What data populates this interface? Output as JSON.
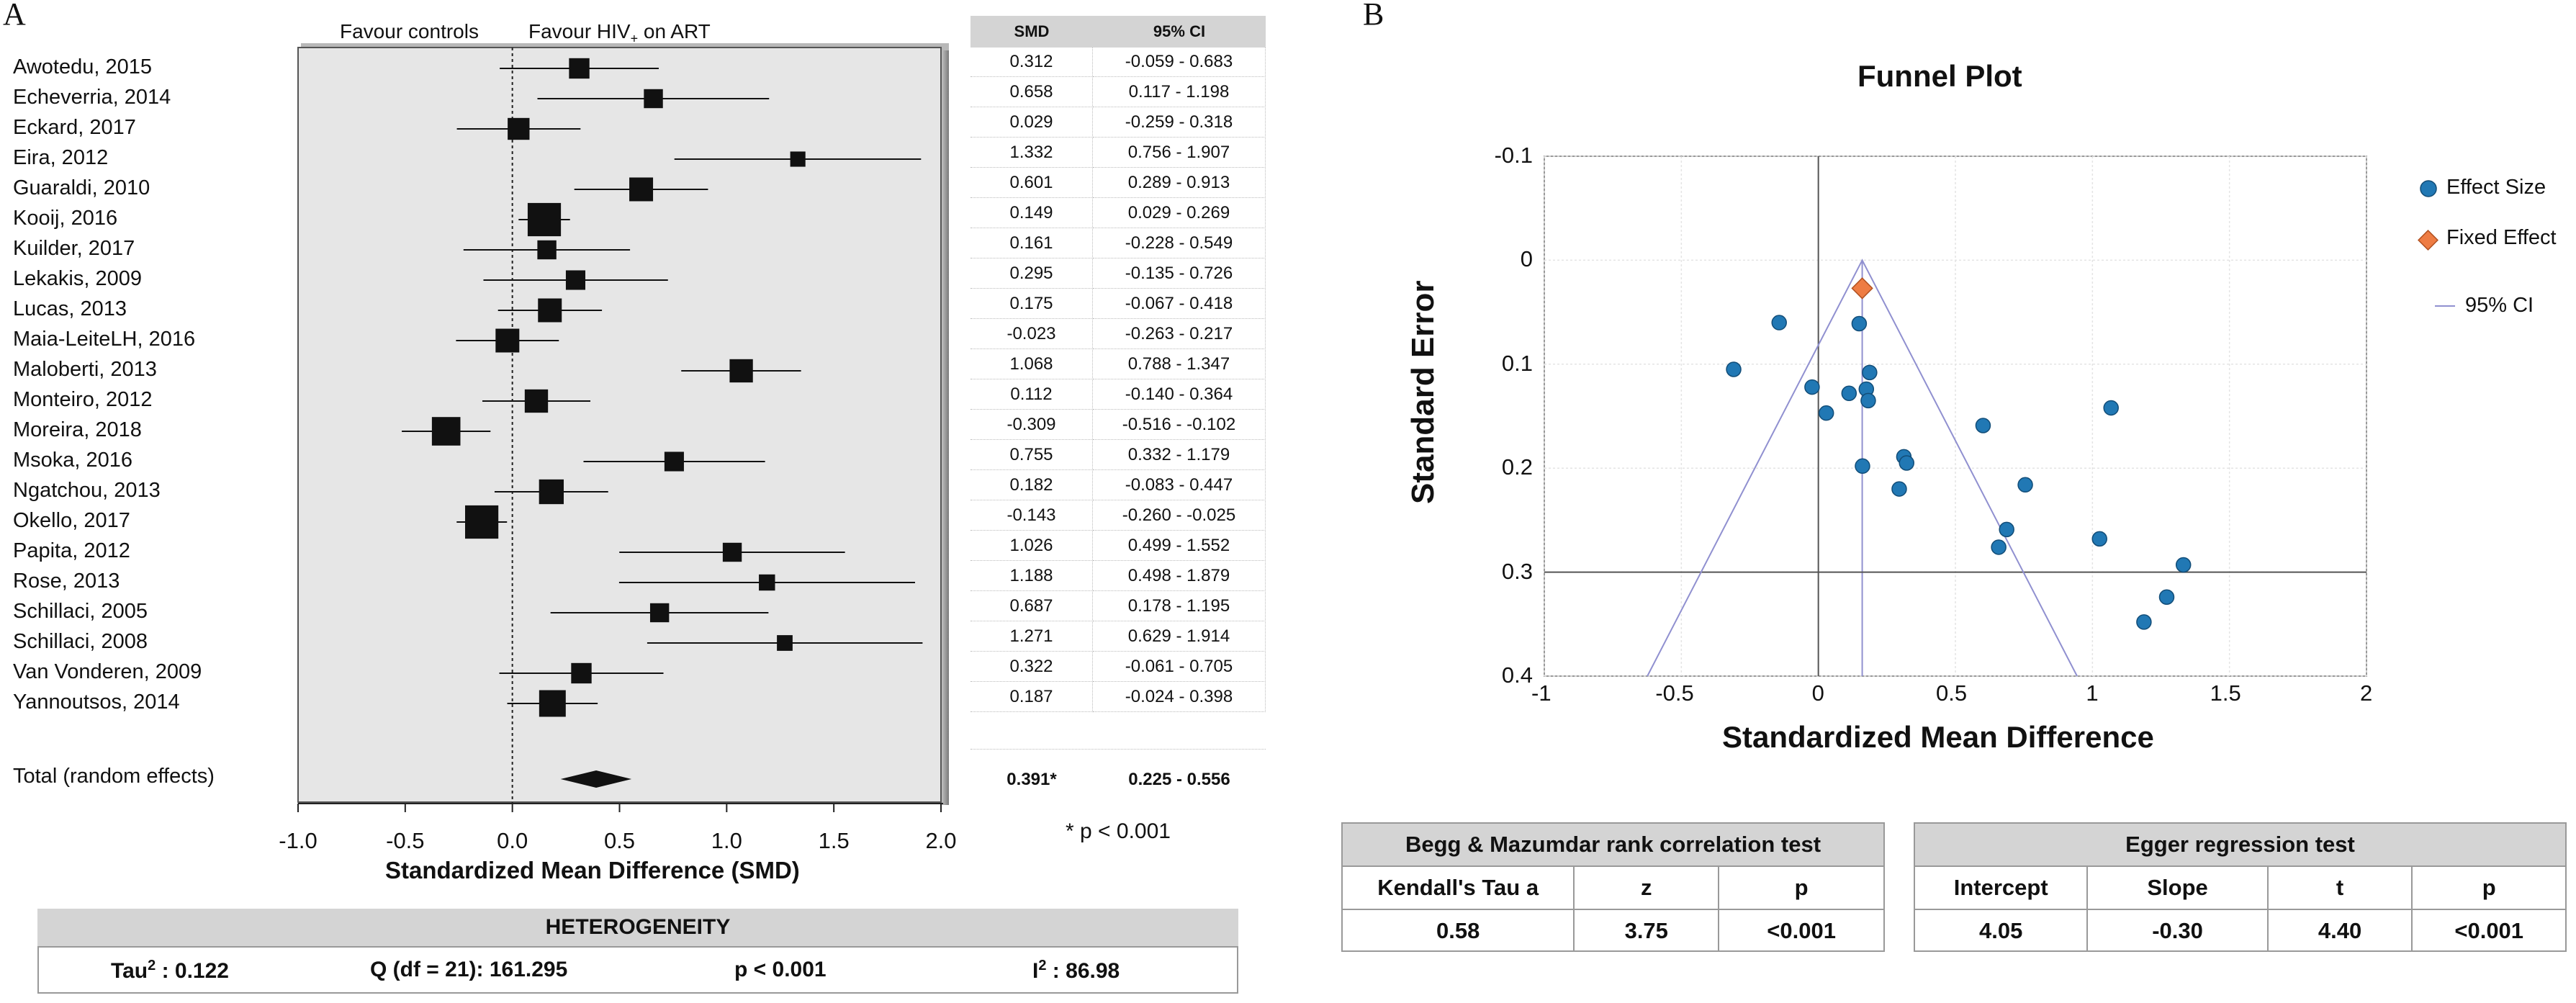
{
  "panel_a_letter": "A",
  "panel_b_letter": "B",
  "forest": {
    "favour_left": "Favour controls",
    "favour_right": "Favour HIV",
    "favour_right_sub": "+",
    "favour_right_tail": " on ART",
    "xlabel": "Standardized Mean Difference (SMD)",
    "x_ticks": [
      "-1.0",
      "-0.5",
      "0.0",
      "0.5",
      "1.0",
      "1.5",
      "2.0"
    ],
    "total_label": "Total (random effects)",
    "smd_header": "SMD",
    "ci_header": "95% CI",
    "total_smd": "0.391*",
    "total_ci": "0.225 - 0.556",
    "footnote": "* p < 0.001"
  },
  "chart_data": [
    {
      "type": "forest",
      "xlabel": "Standardized Mean Difference (SMD)",
      "xlim": [
        -1.0,
        2.0
      ],
      "studies": [
        {
          "name": "Awotedu, 2015",
          "smd": 0.312,
          "lo": -0.059,
          "hi": 0.683,
          "ci_text": "-0.059 - 0.683",
          "smd_text": "0.312",
          "weight": 4.3
        },
        {
          "name": "Echeverria, 2014",
          "smd": 0.658,
          "lo": 0.117,
          "hi": 1.198,
          "ci_text": "0.117 - 1.198",
          "smd_text": "0.658",
          "weight": 4.0
        },
        {
          "name": "Eckard, 2017",
          "smd": 0.029,
          "lo": -0.259,
          "hi": 0.318,
          "ci_text": "-0.259 - 0.318",
          "smd_text": "0.029",
          "weight": 4.6
        },
        {
          "name": "Eira, 2012",
          "smd": 1.332,
          "lo": 0.756,
          "hi": 1.907,
          "ci_text": "0.756 - 1.907",
          "smd_text": "1.332",
          "weight": 3.2
        },
        {
          "name": "Guaraldi, 2010",
          "smd": 0.601,
          "lo": 0.289,
          "hi": 0.913,
          "ci_text": "0.289 - 0.913",
          "smd_text": "0.601",
          "weight": 5.0
        },
        {
          "name": "Kooij, 2016",
          "smd": 0.149,
          "lo": 0.029,
          "hi": 0.269,
          "ci_text": "0.029 - 0.269",
          "smd_text": "0.149",
          "weight": 7.0
        },
        {
          "name": "Kuilder, 2017",
          "smd": 0.161,
          "lo": -0.228,
          "hi": 0.549,
          "ci_text": "-0.228 - 0.549",
          "smd_text": "0.161",
          "weight": 4.0
        },
        {
          "name": "Lekakis, 2009",
          "smd": 0.295,
          "lo": -0.135,
          "hi": 0.726,
          "ci_text": "-0.135 - 0.726",
          "smd_text": "0.295",
          "weight": 4.1
        },
        {
          "name": "Lucas, 2013",
          "smd": 0.175,
          "lo": -0.067,
          "hi": 0.418,
          "ci_text": "-0.067 - 0.418",
          "smd_text": "0.175",
          "weight": 5.0
        },
        {
          "name": "Maia-LeiteLH, 2016",
          "smd": -0.023,
          "lo": -0.263,
          "hi": 0.217,
          "ci_text": "-0.263 - 0.217",
          "smd_text": "-0.023",
          "weight": 5.0
        },
        {
          "name": "Maloberti, 2013",
          "smd": 1.068,
          "lo": 0.788,
          "hi": 1.347,
          "ci_text": "0.788 - 1.347",
          "smd_text": "1.068",
          "weight": 4.9
        },
        {
          "name": "Monteiro, 2012",
          "smd": 0.112,
          "lo": -0.14,
          "hi": 0.364,
          "ci_text": "-0.140 - 0.364",
          "smd_text": "0.112",
          "weight": 4.9
        },
        {
          "name": "Moreira, 2018",
          "smd": -0.309,
          "lo": -0.516,
          "hi": -0.102,
          "ci_text": "-0.516 - -0.102",
          "smd_text": "-0.309",
          "weight": 6.0
        },
        {
          "name": "Msoka, 2016",
          "smd": 0.755,
          "lo": 0.332,
          "hi": 1.179,
          "ci_text": "0.332 - 1.179",
          "smd_text": "0.755",
          "weight": 4.1
        },
        {
          "name": "Ngatchou, 2013",
          "smd": 0.182,
          "lo": -0.083,
          "hi": 0.447,
          "ci_text": "-0.083 - 0.447",
          "smd_text": "0.182",
          "weight": 5.2
        },
        {
          "name": "Okello, 2017",
          "smd": -0.143,
          "lo": -0.26,
          "hi": -0.025,
          "ci_text": "-0.260 - -0.025",
          "smd_text": "-0.143",
          "weight": 7.0
        },
        {
          "name": "Papita, 2012",
          "smd": 1.026,
          "lo": 0.499,
          "hi": 1.552,
          "ci_text": "0.499 - 1.552",
          "smd_text": "1.026",
          "weight": 4.0
        },
        {
          "name": "Rose, 2013",
          "smd": 1.188,
          "lo": 0.498,
          "hi": 1.879,
          "ci_text": "0.498 - 1.879",
          "smd_text": "1.188",
          "weight": 3.4
        },
        {
          "name": "Schillaci, 2005",
          "smd": 0.687,
          "lo": 0.178,
          "hi": 1.195,
          "ci_text": "0.178 - 1.195",
          "smd_text": "0.687",
          "weight": 4.0
        },
        {
          "name": "Schillaci, 2008",
          "smd": 1.271,
          "lo": 0.629,
          "hi": 1.914,
          "ci_text": "0.629 - 1.914",
          "smd_text": "1.271",
          "weight": 3.3
        },
        {
          "name": "Van Vonderen, 2009",
          "smd": 0.322,
          "lo": -0.061,
          "hi": 0.705,
          "ci_text": "-0.061 - 0.705",
          "smd_text": "0.322",
          "weight": 4.3
        },
        {
          "name": "Yannoutsos, 2014",
          "smd": 0.187,
          "lo": -0.024,
          "hi": 0.398,
          "ci_text": "-0.024 - 0.398",
          "smd_text": "0.187",
          "weight": 5.6
        }
      ],
      "total": {
        "smd": 0.391,
        "lo": 0.225,
        "hi": 0.556
      }
    },
    {
      "type": "scatter",
      "title": "Funnel Plot",
      "xlabel": "Standardized Mean Difference",
      "ylabel": "Standard Error",
      "xlim": [
        -1,
        2
      ],
      "ylim": [
        -0.1,
        0.4
      ],
      "y_inverted": true,
      "x_ticks": [
        "-1",
        "-0.5",
        "0",
        "0.5",
        "1",
        "1.5",
        "2"
      ],
      "y_ticks": [
        "-0.1",
        "0",
        "0.1",
        "0.2",
        "0.3",
        "0.4"
      ],
      "legend": [
        "Effect Size",
        "Fixed Effect",
        "95% CI"
      ],
      "legend_position": "right",
      "colors": {
        "effect_size": "#2178b4",
        "fixed_effect": "#ee7c43",
        "ci": "#9090d0"
      },
      "points": [
        {
          "x": 0.312,
          "y": 0.189
        },
        {
          "x": 0.658,
          "y": 0.276
        },
        {
          "x": 0.029,
          "y": 0.147
        },
        {
          "x": 1.332,
          "y": 0.293
        },
        {
          "x": 0.601,
          "y": 0.159
        },
        {
          "x": 0.149,
          "y": 0.061
        },
        {
          "x": 0.161,
          "y": 0.198
        },
        {
          "x": 0.295,
          "y": 0.22
        },
        {
          "x": 0.175,
          "y": 0.124
        },
        {
          "x": -0.023,
          "y": 0.122
        },
        {
          "x": 1.068,
          "y": 0.142
        },
        {
          "x": 0.112,
          "y": 0.128
        },
        {
          "x": -0.309,
          "y": 0.105
        },
        {
          "x": 0.755,
          "y": 0.216
        },
        {
          "x": 0.182,
          "y": 0.135
        },
        {
          "x": -0.143,
          "y": 0.06
        },
        {
          "x": 1.026,
          "y": 0.268
        },
        {
          "x": 1.188,
          "y": 0.348
        },
        {
          "x": 0.687,
          "y": 0.259
        },
        {
          "x": 1.271,
          "y": 0.324
        },
        {
          "x": 0.322,
          "y": 0.195
        },
        {
          "x": 0.187,
          "y": 0.108
        }
      ],
      "fixed_effect": {
        "x": 0.16,
        "y": 0.027
      },
      "funnel": {
        "center": 0.16,
        "se_max": 0.4
      },
      "ref_lines": {
        "x_zero": 0,
        "x_pooled": 0.16,
        "y": 0.3
      }
    }
  ],
  "heterogeneity": {
    "title": "HETEROGENEITY",
    "tau_label": "Tau",
    "tau_sup": "2",
    "tau_value": " : 0.122",
    "q": "Q (df = 21): 161.295",
    "p": "p < 0.001",
    "i_label": "I",
    "i_sup": "2",
    "i_value": " : 86.98"
  },
  "begg": {
    "title": "Begg & Mazumdar rank correlation test",
    "headers": [
      "Kendall's Tau a",
      "z",
      "p"
    ],
    "values": [
      "0.58",
      "3.75",
      "<0.001"
    ]
  },
  "egger": {
    "title": "Egger regression test",
    "headers": [
      "Intercept",
      "Slope",
      "t",
      "p"
    ],
    "values": [
      "4.05",
      "-0.30",
      "4.40",
      "<0.001"
    ]
  }
}
